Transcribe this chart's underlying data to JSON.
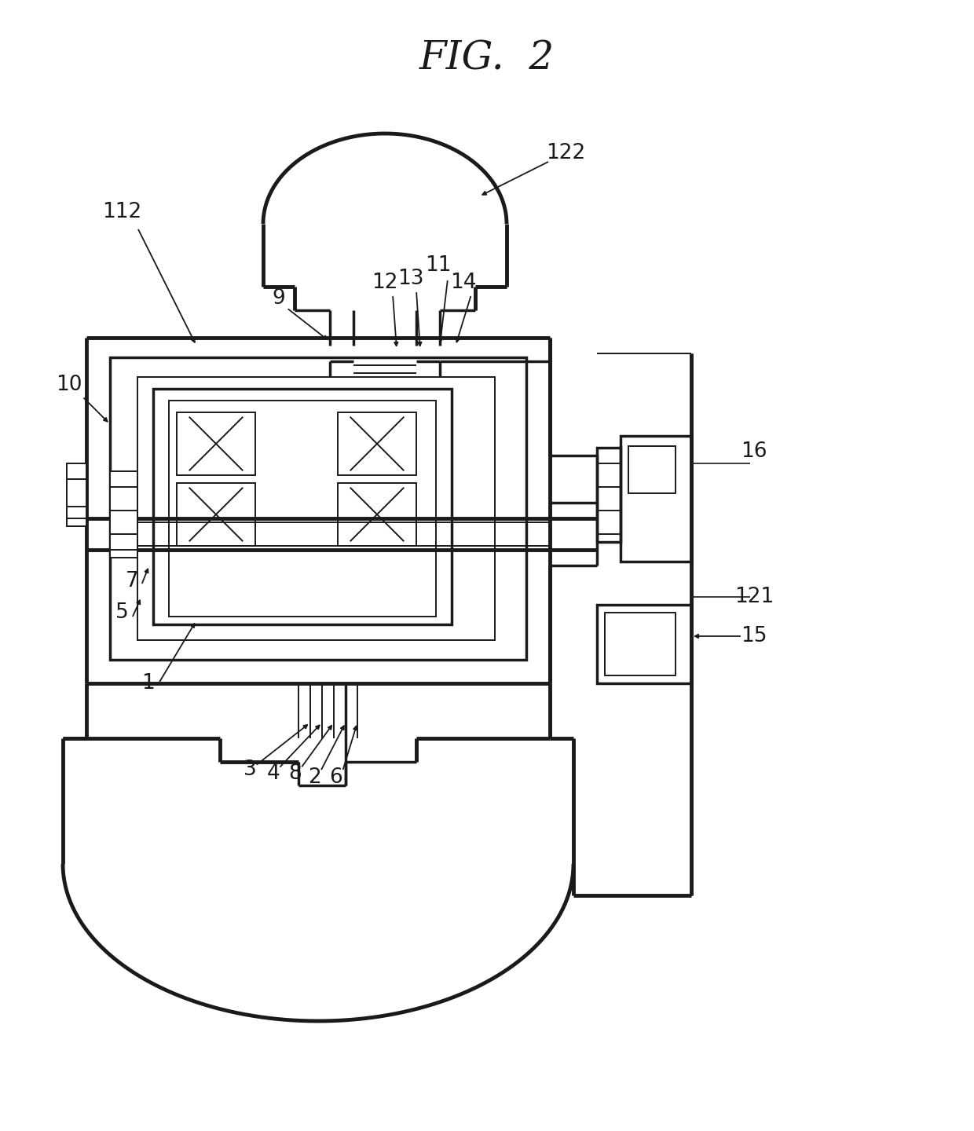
{
  "title": "FIG.  2",
  "bg_color": "#ffffff",
  "lc": "#1a1a1a",
  "lw1": 1.4,
  "lw2": 2.5,
  "lw3": 3.5,
  "fs": 19
}
